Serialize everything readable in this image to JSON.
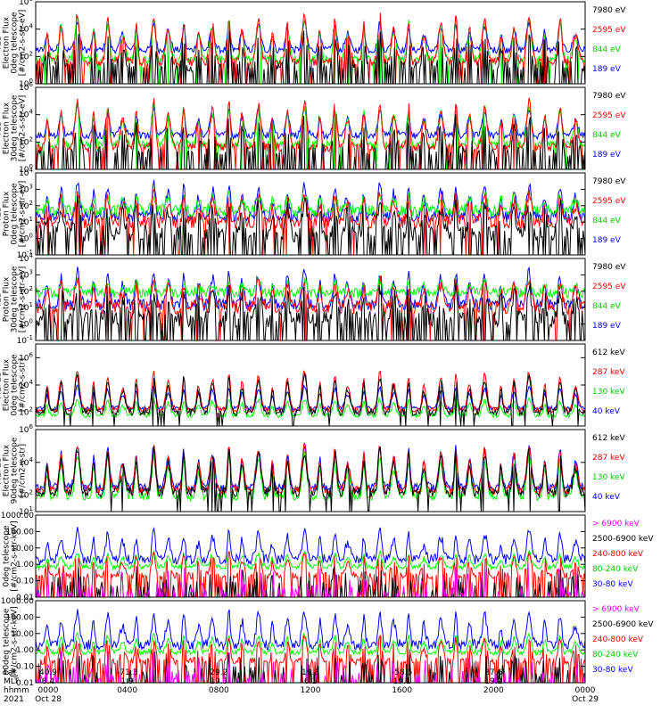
{
  "colors": {
    "black": "#000000",
    "blue": "#0000ff",
    "red": "#ff0000",
    "green": "#00ff00",
    "magenta": "#ff00ff",
    "frame": "#000000"
  },
  "chart_data": [
    {
      "type": "line",
      "ylabel": [
        "TED",
        "Electron Flux",
        "0deg telescope",
        "[#/cm2-s-str-eV]"
      ],
      "y_scale": "log",
      "ylim": [
        1,
        1000000
      ],
      "yticks": [
        "10^0",
        "10^2",
        "10^4",
        "10^6"
      ],
      "series": [
        {
          "name": "7980 eV",
          "color": "#000000"
        },
        {
          "name": "2595 eV",
          "color": "#ff0000"
        },
        {
          "name": "844 eV",
          "color": "#00ff00"
        },
        {
          "name": "189 eV",
          "color": "#0000ff"
        }
      ]
    },
    {
      "type": "line",
      "ylabel": [
        "TED",
        "Electron Flux",
        "30deg telescope",
        "[#/cm2-s-str-eV]"
      ],
      "y_scale": "log",
      "ylim": [
        1,
        1000000
      ],
      "yticks": [
        "10^0",
        "10^2",
        "10^4",
        "10^6"
      ],
      "series": [
        {
          "name": "7980 eV",
          "color": "#000000"
        },
        {
          "name": "2595 eV",
          "color": "#ff0000"
        },
        {
          "name": "844 eV",
          "color": "#00ff00"
        },
        {
          "name": "189 eV",
          "color": "#0000ff"
        }
      ]
    },
    {
      "type": "line",
      "ylabel": [
        "TED",
        "Proton Flux",
        "0deg telescope",
        "[#/cm2-s-str-eV]"
      ],
      "y_scale": "log",
      "ylim": [
        0.1,
        10000
      ],
      "yticks": [
        "10^-1",
        "10^0",
        "10^1",
        "10^2",
        "10^3",
        "10^4"
      ],
      "series": [
        {
          "name": "7980 eV",
          "color": "#000000"
        },
        {
          "name": "2595 eV",
          "color": "#ff0000"
        },
        {
          "name": "844 eV",
          "color": "#00ff00"
        },
        {
          "name": "189 eV",
          "color": "#0000ff"
        }
      ]
    },
    {
      "type": "line",
      "ylabel": [
        "TED",
        "Proton Flux",
        "30deg telescope",
        "[#/cm2-s-str-eV]"
      ],
      "y_scale": "log",
      "ylim": [
        0.1,
        10000
      ],
      "yticks": [
        "10^-1",
        "10^0",
        "10^1",
        "10^2",
        "10^3",
        "10^4"
      ],
      "series": [
        {
          "name": "7980 eV",
          "color": "#000000"
        },
        {
          "name": "2595 eV",
          "color": "#ff0000"
        },
        {
          "name": "844 eV",
          "color": "#00ff00"
        },
        {
          "name": "189 eV",
          "color": "#0000ff"
        }
      ]
    },
    {
      "type": "line",
      "ylabel": [
        "MEPED",
        "Electron Flux",
        "0deg telescope",
        "[#/cm2-s-str]"
      ],
      "y_scale": "log",
      "ylim": [
        10,
        10000000
      ],
      "yticks": [
        "10^2",
        "10^4",
        "10^6"
      ],
      "series": [
        {
          "name": "612 keV",
          "color": "#000000"
        },
        {
          "name": "287 keV",
          "color": "#ff0000"
        },
        {
          "name": "130 keV",
          "color": "#00ff00"
        },
        {
          "name": "40 keV",
          "color": "#0000ff"
        }
      ]
    },
    {
      "type": "line",
      "ylabel": [
        "MEPED",
        "Electron Flux",
        "90deg telescope",
        "[#/cm2-s-str]"
      ],
      "y_scale": "log",
      "ylim": [
        10,
        1000000
      ],
      "yticks": [
        "10^1",
        "10^2",
        "10^4",
        "10^6"
      ],
      "series": [
        {
          "name": "612 keV",
          "color": "#000000"
        },
        {
          "name": "287 keV",
          "color": "#ff0000"
        },
        {
          "name": "130 keV",
          "color": "#00ff00"
        },
        {
          "name": "40 keV",
          "color": "#0000ff"
        }
      ]
    },
    {
      "type": "line",
      "ylabel": [
        "0deg telescope",
        "[#/cm2-s-str-keV]"
      ],
      "y_scale": "log",
      "ylim": [
        0.01,
        1000
      ],
      "yticks": [
        "0.01",
        "0.10",
        "1.00",
        "10.00",
        "100.00",
        "1000.00"
      ],
      "series": [
        {
          "name": "> 6900 keV",
          "color": "#ff00ff"
        },
        {
          "name": "2500-6900 keV",
          "color": "#000000"
        },
        {
          "name": "240-800 keV",
          "color": "#ff0000"
        },
        {
          "name": "80-240 keV",
          "color": "#00ff00"
        },
        {
          "name": "30-80 keV",
          "color": "#0000ff"
        }
      ]
    },
    {
      "type": "line",
      "ylabel": [
        "90deg telescope",
        "[#/cm2-s-str-keV]"
      ],
      "y_scale": "log",
      "ylim": [
        0.01,
        1000
      ],
      "yticks": [
        "0.01",
        "0.10",
        "1.00",
        "10.00",
        "100.00",
        "1000.00"
      ],
      "series": [
        {
          "name": "> 6900 keV",
          "color": "#ff00ff"
        },
        {
          "name": "2500-6900 keV",
          "color": "#000000"
        },
        {
          "name": "240-800 keV",
          "color": "#ff0000"
        },
        {
          "name": "80-240 keV",
          "color": "#00ff00"
        },
        {
          "name": "30-80 keV",
          "color": "#0000ff"
        }
      ]
    }
  ],
  "time_axis": {
    "row_labels": [
      "Lat",
      "MLT",
      "hhmm",
      "2021"
    ],
    "columns": [
      {
        "lat": "40.9",
        "mlt": "8.4",
        "hhmm": "0000",
        "date": "Oct 28"
      },
      {
        "lat": "-71.3",
        "mlt": "1.9",
        "hhmm": "0400",
        "date": ""
      },
      {
        "lat": "29.2",
        "mlt": "19.3",
        "hhmm": "0800",
        "date": ""
      },
      {
        "lat": "19.3",
        "mlt": "6.1",
        "hhmm": "1200",
        "date": ""
      },
      {
        "lat": "-58.5",
        "mlt": "19.1",
        "hhmm": "1600",
        "date": ""
      },
      {
        "lat": "87.6",
        "mlt": "19.2",
        "hhmm": "2000",
        "date": ""
      },
      {
        "lat": "",
        "mlt": "",
        "hhmm": "0000",
        "date": "Oct 29"
      }
    ]
  }
}
